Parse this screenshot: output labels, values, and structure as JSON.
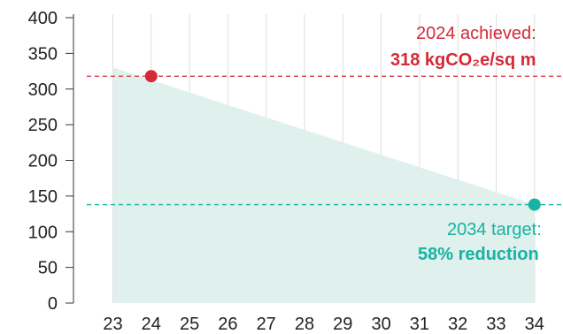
{
  "chart_data": {
    "type": "area",
    "title": "",
    "xlabel": "",
    "ylabel": "",
    "x": [
      23,
      34
    ],
    "y": [
      330,
      138
    ],
    "xticks": [
      "23",
      "24",
      "25",
      "26",
      "27",
      "28",
      "29",
      "30",
      "31",
      "32",
      "33",
      "34"
    ],
    "yticks": [
      "0",
      "50",
      "100",
      "150",
      "200",
      "250",
      "300",
      "350",
      "400"
    ],
    "xlim": [
      22,
      34.7
    ],
    "ylim": [
      0,
      400
    ],
    "grid": "vertical",
    "markers": [
      {
        "x": 24,
        "y": 318,
        "color": "#d42a37"
      },
      {
        "x": 34,
        "y": 138,
        "color": "#17b3a3"
      }
    ],
    "reference_lines": [
      {
        "y": 318,
        "color": "#d42a37",
        "style": "dashed"
      },
      {
        "y": 138,
        "color": "#17b3a3",
        "style": "dashed"
      }
    ],
    "annotations": [
      {
        "line1": "2024 achieved:",
        "line2": "318 kgCO₂e/sq m",
        "color": "#d42a37"
      },
      {
        "line1": "2034 target:",
        "line2": "58% reduction",
        "color": "#17b3a3"
      }
    ],
    "colors": {
      "area_fill": "#dff0ed",
      "achieved": "#d42a37",
      "target": "#17b3a3",
      "gridline": "#dedede",
      "axis": "#333333"
    }
  }
}
